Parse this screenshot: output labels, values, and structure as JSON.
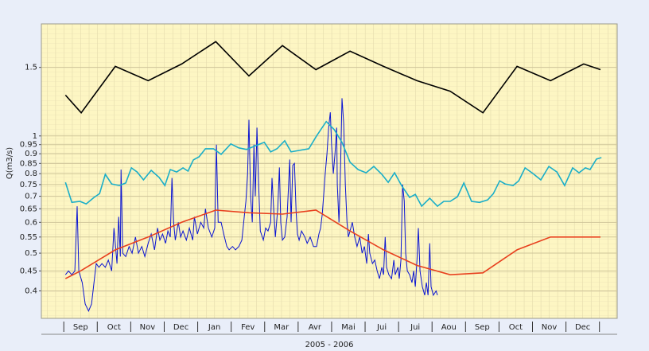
{
  "chart_data": {
    "type": "line",
    "y_label": "Q(m3/s)",
    "x_label": "2005 - 2006",
    "categories": [
      "Sep",
      "Oct",
      "Nov",
      "Dec",
      "Jan",
      "Fev",
      "Mar",
      "Avr",
      "Mai",
      "Jui",
      "Jui",
      "Aou",
      "Sep",
      "Oct",
      "Nov",
      "Dec"
    ],
    "xlim": [
      -0.67,
      16.53
    ],
    "xticks": [
      0,
      1,
      2,
      3,
      4,
      5,
      6,
      7,
      8,
      9,
      10,
      11,
      12,
      13,
      14,
      15,
      16
    ],
    "ylim": [
      0.34,
      1.94
    ],
    "yticks": [
      0.4,
      0.45,
      0.5,
      0.55,
      0.6,
      0.65,
      0.7,
      0.75,
      0.8,
      0.85,
      0.9,
      0.95,
      1,
      1.5
    ],
    "log_y": true,
    "grid": true,
    "series": [
      {
        "color": "#0a14d2",
        "x": [
          0.05,
          0.14,
          0.24,
          0.33,
          0.4,
          0.45,
          0.55,
          0.64,
          0.74,
          0.83,
          0.93,
          0.97,
          1.05,
          1.14,
          1.24,
          1.33,
          1.43,
          1.5,
          1.59,
          1.64,
          1.69,
          1.71,
          1.76,
          1.85,
          1.95,
          2.04,
          2.14,
          2.23,
          2.33,
          2.42,
          2.52,
          2.61,
          2.71,
          2.8,
          2.87,
          2.95,
          3.04,
          3.11,
          3.18,
          3.23,
          3.28,
          3.33,
          3.42,
          3.49,
          3.56,
          3.66,
          3.75,
          3.85,
          3.9,
          3.99,
          4.09,
          4.18,
          4.23,
          4.32,
          4.42,
          4.51,
          4.56,
          4.61,
          4.7,
          4.8,
          4.87,
          4.94,
          5.04,
          5.13,
          5.23,
          5.32,
          5.39,
          5.44,
          5.49,
          5.53,
          5.58,
          5.63,
          5.68,
          5.72,
          5.77,
          5.82,
          5.87,
          5.96,
          6.03,
          6.1,
          6.18,
          6.22,
          6.27,
          6.32,
          6.39,
          6.44,
          6.48,
          6.53,
          6.6,
          6.67,
          6.75,
          6.79,
          6.84,
          6.89,
          6.94,
          6.98,
          7.03,
          7.1,
          7.2,
          7.27,
          7.36,
          7.46,
          7.55,
          7.62,
          7.67,
          7.72,
          7.77,
          7.81,
          7.86,
          7.91,
          7.96,
          8.0,
          8.05,
          8.1,
          8.15,
          8.17,
          8.22,
          8.27,
          8.31,
          8.36,
          8.41,
          8.46,
          8.5,
          8.55,
          8.62,
          8.69,
          8.76,
          8.84,
          8.91,
          8.98,
          9.05,
          9.1,
          9.14,
          9.22,
          9.29,
          9.36,
          9.43,
          9.5,
          9.55,
          9.6,
          9.64,
          9.71,
          9.79,
          9.86,
          9.9,
          9.98,
          10.02,
          10.07,
          10.12,
          10.17,
          10.21,
          10.26,
          10.33,
          10.4,
          10.45,
          10.5,
          10.55,
          10.59,
          10.64,
          10.71,
          10.78,
          10.83,
          10.88,
          10.93,
          10.97,
          11.04,
          11.12,
          11.16
        ],
        "values": [
          0.44,
          0.45,
          0.44,
          0.45,
          0.66,
          0.45,
          0.42,
          0.37,
          0.355,
          0.37,
          0.44,
          0.47,
          0.46,
          0.47,
          0.46,
          0.48,
          0.45,
          0.58,
          0.47,
          0.62,
          0.49,
          0.82,
          0.5,
          0.49,
          0.52,
          0.5,
          0.55,
          0.5,
          0.52,
          0.49,
          0.53,
          0.56,
          0.51,
          0.58,
          0.54,
          0.56,
          0.53,
          0.57,
          0.55,
          0.78,
          0.6,
          0.54,
          0.6,
          0.55,
          0.57,
          0.54,
          0.58,
          0.54,
          0.62,
          0.56,
          0.6,
          0.58,
          0.65,
          0.58,
          0.55,
          0.58,
          0.95,
          0.6,
          0.6,
          0.55,
          0.52,
          0.51,
          0.52,
          0.51,
          0.52,
          0.54,
          0.62,
          0.68,
          0.8,
          1.1,
          0.7,
          0.6,
          0.95,
          0.7,
          1.05,
          0.75,
          0.57,
          0.54,
          0.58,
          0.57,
          0.6,
          0.78,
          0.65,
          0.55,
          0.65,
          0.83,
          0.6,
          0.54,
          0.55,
          0.62,
          0.87,
          0.6,
          0.84,
          0.85,
          0.64,
          0.56,
          0.54,
          0.57,
          0.55,
          0.53,
          0.55,
          0.52,
          0.52,
          0.56,
          0.58,
          0.63,
          0.72,
          0.8,
          0.9,
          1.05,
          1.15,
          0.95,
          0.8,
          0.9,
          1.05,
          0.75,
          0.6,
          0.85,
          1.25,
          1.08,
          0.75,
          0.6,
          0.55,
          0.57,
          0.6,
          0.55,
          0.52,
          0.55,
          0.5,
          0.52,
          0.47,
          0.56,
          0.5,
          0.47,
          0.48,
          0.45,
          0.43,
          0.46,
          0.44,
          0.55,
          0.46,
          0.44,
          0.43,
          0.48,
          0.44,
          0.46,
          0.43,
          0.48,
          0.75,
          0.68,
          0.5,
          0.45,
          0.44,
          0.42,
          0.45,
          0.41,
          0.48,
          0.58,
          0.45,
          0.41,
          0.39,
          0.42,
          0.39,
          0.53,
          0.41,
          0.39,
          0.4,
          0.39
        ]
      },
      {
        "color": "#1aaec8",
        "x": [
          0.05,
          0.24,
          0.48,
          0.67,
          0.9,
          1.07,
          1.24,
          1.43,
          1.66,
          1.85,
          2.02,
          2.19,
          2.38,
          2.61,
          2.85,
          3.02,
          3.18,
          3.37,
          3.56,
          3.71,
          3.87,
          4.04,
          4.23,
          4.47,
          4.7,
          4.99,
          5.23,
          5.46,
          5.75,
          5.99,
          6.18,
          6.37,
          6.6,
          6.79,
          7.03,
          7.32,
          7.55,
          7.84,
          8.08,
          8.31,
          8.55,
          8.79,
          9.03,
          9.26,
          9.5,
          9.69,
          9.88,
          10.09,
          10.33,
          10.5,
          10.69,
          10.93,
          11.16,
          11.35,
          11.54,
          11.76,
          11.95,
          12.18,
          12.42,
          12.66,
          12.83,
          13.02,
          13.18,
          13.42,
          13.59,
          13.78,
          14.01,
          14.25,
          14.49,
          14.73,
          14.96,
          15.2,
          15.39,
          15.58,
          15.72,
          15.91,
          16.06
        ],
        "values": [
          0.76,
          0.675,
          0.679,
          0.669,
          0.695,
          0.711,
          0.797,
          0.753,
          0.746,
          0.757,
          0.828,
          0.808,
          0.771,
          0.816,
          0.782,
          0.746,
          0.82,
          0.808,
          0.828,
          0.812,
          0.868,
          0.884,
          0.927,
          0.927,
          0.897,
          0.954,
          0.932,
          0.923,
          0.945,
          0.963,
          0.91,
          0.927,
          0.972,
          0.91,
          0.918,
          0.927,
          1.0,
          1.089,
          1.038,
          0.963,
          0.856,
          0.82,
          0.804,
          0.835,
          0.797,
          0.76,
          0.804,
          0.746,
          0.695,
          0.708,
          0.66,
          0.692,
          0.66,
          0.679,
          0.679,
          0.698,
          0.757,
          0.679,
          0.675,
          0.685,
          0.711,
          0.767,
          0.753,
          0.746,
          0.767,
          0.828,
          0.801,
          0.771,
          0.835,
          0.808,
          0.746,
          0.828,
          0.804,
          0.828,
          0.82,
          0.872,
          0.88
        ]
      },
      {
        "color": "#000000",
        "x": [
          0.05,
          0.52,
          1.54,
          2.52,
          3.52,
          4.54,
          5.53,
          6.53,
          7.53,
          8.55,
          9.55,
          10.55,
          11.54,
          12.52,
          13.54,
          14.54,
          15.53,
          16.03
        ],
        "values": [
          1.273,
          1.147,
          1.509,
          1.386,
          1.53,
          1.747,
          1.426,
          1.706,
          1.48,
          1.651,
          1.509,
          1.386,
          1.303,
          1.147,
          1.509,
          1.386,
          1.53,
          1.48
        ]
      },
      {
        "color": "#e8401e",
        "x": [
          0.05,
          0.5,
          1.54,
          2.52,
          3.52,
          4.54,
          5.53,
          6.53,
          7.53,
          8.55,
          9.55,
          10.55,
          11.54,
          12.52,
          13.54,
          14.54,
          15.53,
          16.03
        ],
        "values": [
          0.43,
          0.45,
          0.51,
          0.55,
          0.6,
          0.645,
          0.635,
          0.63,
          0.645,
          0.57,
          0.51,
          0.465,
          0.44,
          0.445,
          0.51,
          0.55,
          0.55,
          0.55
        ]
      }
    ]
  }
}
